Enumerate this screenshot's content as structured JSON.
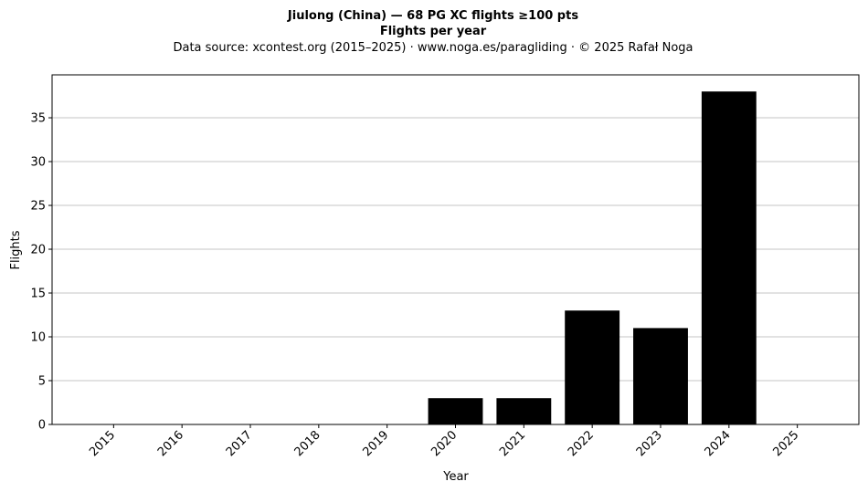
{
  "chart_data": {
    "type": "bar",
    "title": "Jiulong (China)  —  68 PG XC flights ≥100 pts",
    "subtitle": "Flights per year",
    "source": "Data source: xcontest.org (2015–2025)  ·  www.noga.es/paragliding  ·  © 2025 Rafał Noga",
    "xlabel": "Year",
    "ylabel": "Flights",
    "categories": [
      "2015",
      "2016",
      "2017",
      "2018",
      "2019",
      "2020",
      "2021",
      "2022",
      "2023",
      "2024",
      "2025"
    ],
    "values": [
      0,
      0,
      0,
      0,
      0,
      3,
      3,
      13,
      11,
      38,
      0
    ],
    "ylim": [
      0,
      39.9
    ],
    "yticks": [
      0,
      5,
      10,
      15,
      20,
      25,
      30,
      35
    ],
    "grid": "y",
    "bar_color": "#000000"
  }
}
